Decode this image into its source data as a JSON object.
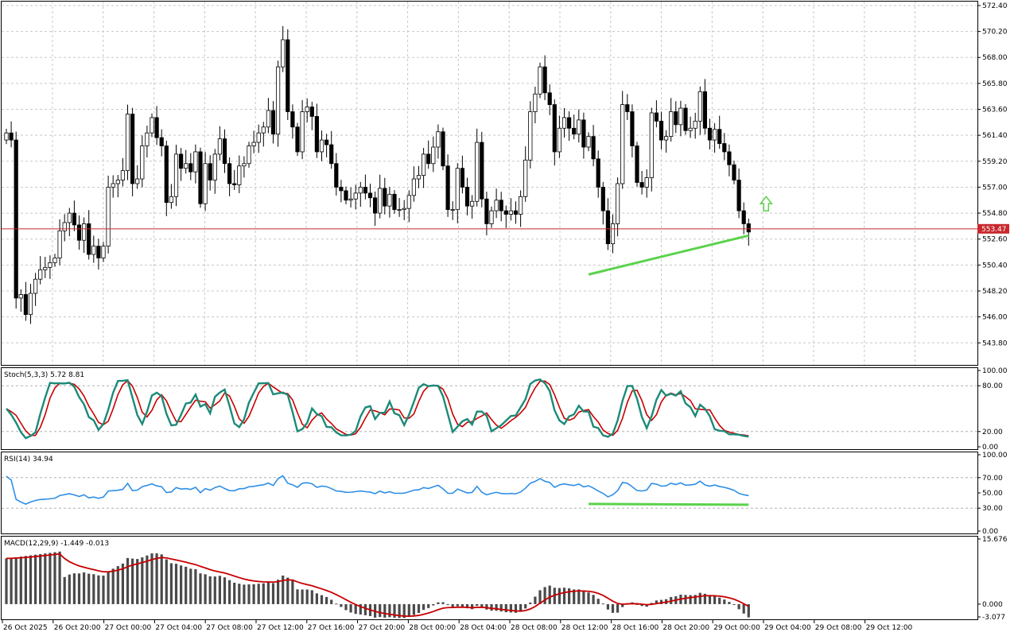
{
  "chart_data": {
    "type": "candlestick",
    "price_label": "553.47",
    "price_level": 553.47,
    "time_labels": [
      "26 Oct 2025",
      "26 Oct 20:00",
      "27 Oct 00:00",
      "27 Oct 04:00",
      "27 Oct 08:00",
      "27 Oct 12:00",
      "27 Oct 16:00",
      "27 Oct 20:00",
      "28 Oct 00:00",
      "28 Oct 04:00",
      "28 Oct 08:00",
      "28 Oct 12:00",
      "28 Oct 16:00",
      "28 Oct 20:00",
      "29 Oct 00:00",
      "29 Oct 04:00",
      "29 Oct 08:00",
      "29 Oct 12:00"
    ],
    "price_axis": {
      "range": [
        542.0,
        572.6
      ],
      "ticks": [
        "572.40",
        "570.20",
        "568.00",
        "565.80",
        "563.60",
        "561.40",
        "559.20",
        "557.00",
        "554.80",
        "552.60",
        "550.40",
        "548.20",
        "546.00",
        "543.80"
      ]
    },
    "candles_close": [
      561.6,
      561.0,
      547.6,
      547.9,
      546.2,
      548.0,
      549.2,
      550.0,
      550.2,
      550.6,
      551.0,
      553.3,
      554.0,
      554.8,
      553.8,
      552.5,
      553.9,
      551.3,
      552.0,
      551.0,
      552.0,
      557.0,
      557.3,
      557.6,
      558.4,
      563.2,
      557.3,
      557.7,
      560.5,
      561.6,
      562.9,
      561.2,
      560.5,
      555.7,
      556.2,
      559.8,
      558.6,
      559.0,
      558.3,
      560.0,
      555.6,
      559.0,
      557.6,
      559.8,
      561.1,
      559.0,
      557.3,
      557.2,
      558.8,
      559.0,
      560.5,
      560.8,
      561.6,
      562.1,
      563.5,
      561.5,
      567.2,
      569.5,
      563.4,
      562.1,
      560.0,
      563.4,
      563.8,
      563.0,
      560.0,
      561.0,
      560.6,
      559.0,
      557.0,
      556.7,
      555.9,
      556.0,
      556.5,
      557.0,
      556.5,
      556.1,
      554.8,
      556.9,
      555.4,
      556.4,
      555.1,
      555.1,
      555.2,
      556.3,
      557.7,
      558.0,
      559.8,
      559.0,
      560.4,
      561.7,
      558.8,
      555.1,
      555.1,
      558.6,
      557.0,
      555.4,
      555.8,
      560.8,
      556.0,
      553.9,
      555.0,
      555.9,
      555.0,
      554.7,
      555.0,
      554.7,
      556.2,
      559.3,
      563.4,
      564.9,
      567.2,
      565.0,
      564.0,
      560.0,
      562.0,
      562.9,
      562.0,
      561.5,
      562.7,
      560.4,
      561.3,
      559.4,
      557.0,
      555.0,
      552.2,
      553.9,
      557.3,
      564.0,
      563.4,
      560.5,
      557.4,
      557.0,
      557.8,
      563.3,
      562.6,
      561.0,
      561.3,
      563.4,
      562.3,
      563.7,
      561.8,
      562.0,
      562.6,
      565.1,
      562.0,
      561.0,
      561.9,
      560.7,
      560.0,
      558.9,
      557.6,
      555.0,
      553.9,
      553.2
    ],
    "stoch": {
      "title": "Stoch(5,3,3) 5.72 8.81",
      "range": [
        0,
        100
      ],
      "ticks": [
        "100.00",
        "80.00",
        "20.00",
        "0.00"
      ],
      "levels": [
        80,
        20
      ]
    },
    "rsi": {
      "title": "RSI(14) 34.94",
      "range": [
        0,
        100
      ],
      "ticks": [
        "100.00",
        "70.00",
        "50.00",
        "30.00",
        "0.00"
      ],
      "levels": [
        70,
        30
      ]
    },
    "macd": {
      "title": "MACD(12,29,9) -1.449 -0.013",
      "range": [
        -3.077,
        15.676
      ],
      "ticks": [
        "15.676",
        "0.000",
        "-3.077"
      ]
    }
  },
  "colors": {
    "trendline": "#5ad24b",
    "stoch_main": "#1c8a78",
    "stoch_signal": "#c80000",
    "rsi_line": "#2e8fe6",
    "macd_signal": "#c80000",
    "macd_hist": "#4a4a4a",
    "price_line": "#c8282d",
    "arrow": "#5ad24b"
  }
}
